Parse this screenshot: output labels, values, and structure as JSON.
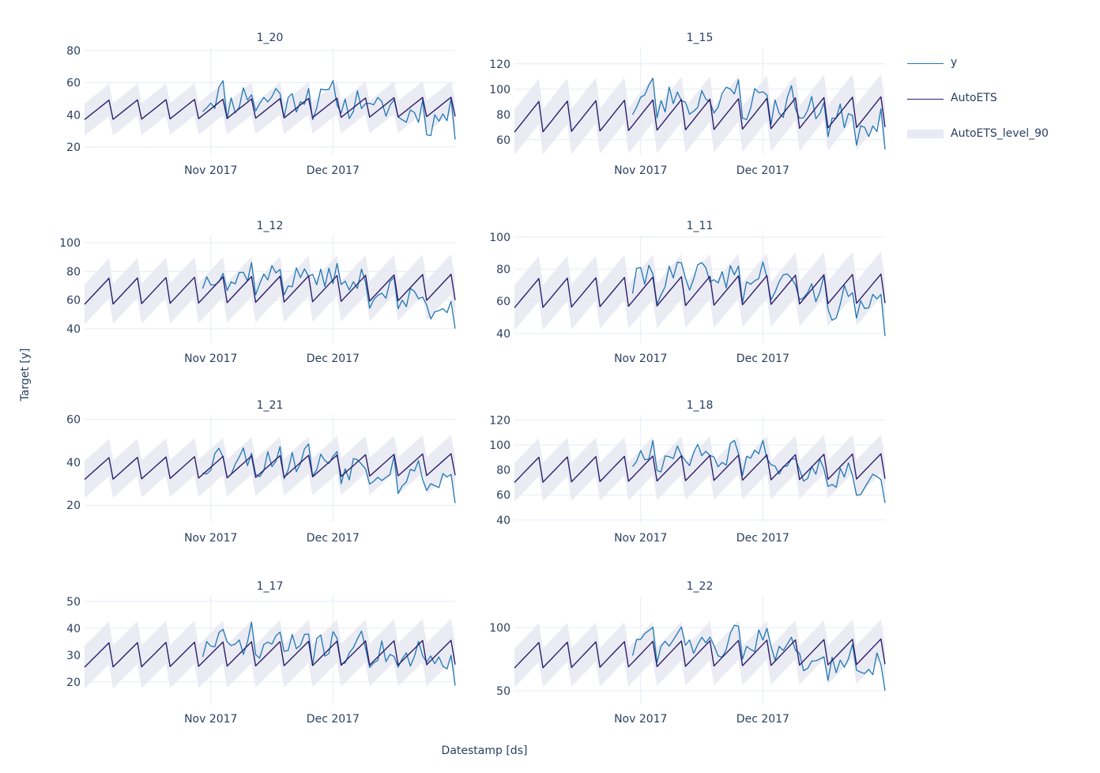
{
  "legend": {
    "y_label": "y",
    "fit_label": "AutoETS",
    "band_label": "AutoETS_level_90"
  },
  "colors": {
    "actual": "#1f77b4",
    "forecast": "#2d1e6b",
    "band": "#e8e9f2",
    "grid": "#e5ecf6",
    "text": "#2a3f5f"
  },
  "chart_data": {
    "type": "line",
    "xlabel": "Datestamp [ds]",
    "ylabel": "Target [y]",
    "x_domain": [
      "2017-10-01",
      "2017-12-31"
    ],
    "x_ticks": [
      {
        "date": "2017-11-01",
        "label": "Nov 2017"
      },
      {
        "date": "2017-12-01",
        "label": "Dec 2017"
      }
    ],
    "season_days": 7,
    "actual_start_day": 29,
    "forecast_start_day": 60,
    "band_halfwidth_note": "AutoETS_level_90 band is roughly fitted value ± 12",
    "subplots": [
      {
        "title": "1_20",
        "ylim": [
          15,
          82
        ],
        "yticks": [
          20,
          40,
          60,
          80
        ],
        "fit": {
          "base": 43,
          "amp": 12,
          "trend": 2
        },
        "actual": {
          "level_start": 50,
          "level_end": 36,
          "amp": 10,
          "noise": 9,
          "seed": 11
        }
      },
      {
        "title": "1_15",
        "ylim": [
          48,
          133
        ],
        "yticks": [
          60,
          80,
          100,
          120
        ],
        "fit": {
          "base": 78,
          "amp": 24,
          "trend": 4
        },
        "actual": {
          "level_start": 92,
          "level_end": 70,
          "amp": 18,
          "noise": 12,
          "seed": 23
        }
      },
      {
        "title": "1_12",
        "ylim": [
          30,
          105
        ],
        "yticks": [
          40,
          60,
          80,
          100
        ],
        "fit": {
          "base": 66,
          "amp": 18,
          "trend": 3
        },
        "actual": {
          "level_start": 76,
          "level_end": 52,
          "amp": 12,
          "noise": 8,
          "seed": 37
        }
      },
      {
        "title": "1_11",
        "ylim": [
          34,
          101
        ],
        "yticks": [
          40,
          60,
          80,
          100
        ],
        "fit": {
          "base": 65,
          "amp": 18,
          "trend": 3
        },
        "actual": {
          "level_start": 74,
          "level_end": 52,
          "amp": 14,
          "noise": 9,
          "seed": 41
        }
      },
      {
        "title": "1_21",
        "ylim": [
          12,
          62
        ],
        "yticks": [
          20,
          40,
          60
        ],
        "fit": {
          "base": 37,
          "amp": 10,
          "trend": 2
        },
        "actual": {
          "level_start": 41,
          "level_end": 30,
          "amp": 9,
          "noise": 6,
          "seed": 53
        }
      },
      {
        "title": "1_18",
        "ylim": [
          38,
          124
        ],
        "yticks": [
          40,
          60,
          80,
          100,
          120
        ],
        "fit": {
          "base": 80,
          "amp": 20,
          "trend": 3
        },
        "actual": {
          "level_start": 92,
          "level_end": 68,
          "amp": 15,
          "noise": 9,
          "seed": 67
        }
      },
      {
        "title": "1_17",
        "ylim": [
          12,
          52
        ],
        "yticks": [
          20,
          30,
          40,
          50
        ],
        "fit": {
          "base": 30,
          "amp": 9,
          "trend": 1
        },
        "actual": {
          "level_start": 34,
          "level_end": 26,
          "amp": 7,
          "noise": 5,
          "seed": 71
        }
      },
      {
        "title": "1_22",
        "ylim": [
          40,
          125
        ],
        "yticks": [
          50,
          100
        ],
        "fit": {
          "base": 78,
          "amp": 20,
          "trend": 3
        },
        "actual": {
          "level_start": 88,
          "level_end": 66,
          "amp": 18,
          "noise": 9,
          "seed": 83
        }
      }
    ]
  }
}
